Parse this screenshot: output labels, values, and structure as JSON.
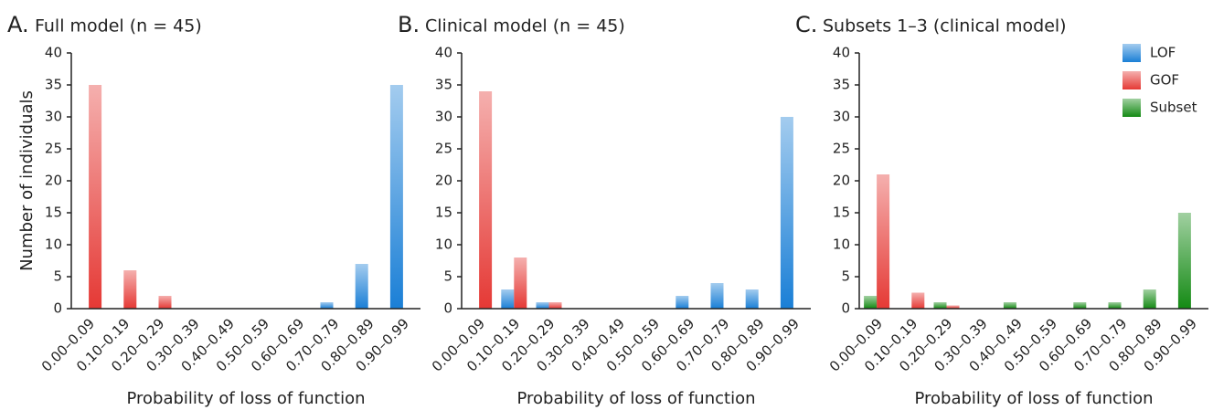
{
  "chart_data": [
    {
      "type": "bar",
      "panel": "A.",
      "title": "Full model (n = 45)",
      "xlabel": "Probability of loss of function",
      "ylabel": "Number of individuals",
      "categories": [
        "0.00–0.09",
        "0.10–0.19",
        "0.20–0.29",
        "0.30–0.39",
        "0.40–0.49",
        "0.50–0.59",
        "0.60–0.69",
        "0.70–0.79",
        "0.80–0.89",
        "0.90–0.99"
      ],
      "series": [
        {
          "name": "LOF",
          "color": "#1a7fd6",
          "values": [
            0,
            0,
            0,
            0,
            0,
            0,
            0,
            1,
            7,
            35
          ]
        },
        {
          "name": "GOF",
          "color": "#e53935",
          "values": [
            35,
            6,
            2,
            0,
            0,
            0,
            0,
            0,
            0,
            0
          ]
        }
      ],
      "ylim": [
        0,
        40
      ],
      "yticks": [
        0,
        5,
        10,
        15,
        20,
        25,
        30,
        35,
        40
      ]
    },
    {
      "type": "bar",
      "panel": "B.",
      "title": "Clinical model (n = 45)",
      "xlabel": "Probability of loss of function",
      "categories": [
        "0.00–0.09",
        "0.10–0.19",
        "0.20–0.29",
        "0.30–0.39",
        "0.40–0.49",
        "0.50–0.59",
        "0.60–0.69",
        "0.70–0.79",
        "0.80–0.89",
        "0.90–0.99"
      ],
      "series": [
        {
          "name": "LOF",
          "color": "#1a7fd6",
          "values": [
            0,
            3,
            1,
            0,
            0,
            0,
            2,
            4,
            3,
            30
          ]
        },
        {
          "name": "GOF",
          "color": "#e53935",
          "values": [
            34,
            8,
            1,
            0,
            0,
            0,
            0,
            0,
            0,
            0
          ]
        }
      ],
      "ylim": [
        0,
        40
      ],
      "yticks": [
        0,
        5,
        10,
        15,
        20,
        25,
        30,
        35,
        40
      ]
    },
    {
      "type": "bar",
      "panel": "C.",
      "title": "Subsets 1–3 (clinical model)",
      "xlabel": "Probability of loss of function",
      "categories": [
        "0.00–0.09",
        "0.10–0.19",
        "0.20–0.29",
        "0.30–0.39",
        "0.40–0.49",
        "0.50–0.59",
        "0.60–0.69",
        "0.70–0.79",
        "0.80–0.89",
        "0.90–0.99"
      ],
      "series": [
        {
          "name": "LOF",
          "color": "#1a7fd6",
          "values": [
            0,
            0,
            0,
            0,
            0,
            0,
            0,
            0,
            0,
            0
          ]
        },
        {
          "name": "GOF",
          "color": "#e53935",
          "values": [
            21,
            2.5,
            0.5,
            0,
            0,
            0,
            0,
            0,
            0,
            0
          ]
        },
        {
          "name": "Subset",
          "color": "#148a14",
          "values": [
            2,
            0,
            1,
            0,
            1,
            0,
            1,
            1,
            3,
            15
          ]
        }
      ],
      "ylim": [
        0,
        40
      ],
      "yticks": [
        0,
        5,
        10,
        15,
        20,
        25,
        30,
        35,
        40
      ],
      "legend": "upper right"
    }
  ]
}
